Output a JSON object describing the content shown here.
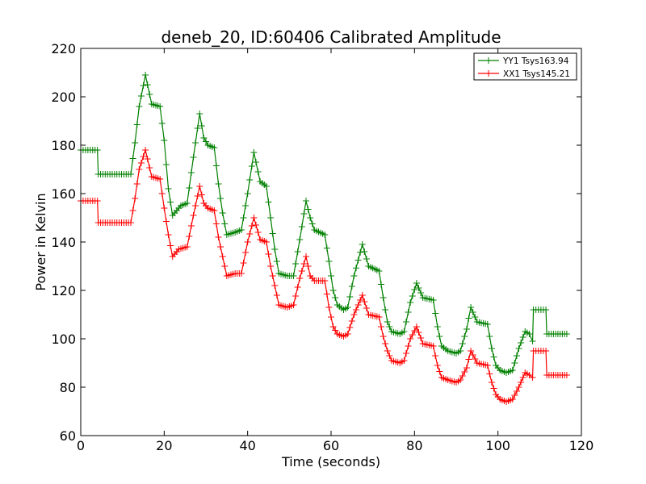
{
  "chart_data": {
    "type": "line",
    "title": "deneb_20, ID:60406 Calibrated Amplitude",
    "xlabel": "Time (seconds)",
    "ylabel": "Power in Kelvin",
    "xlim": [
      0,
      120
    ],
    "ylim": [
      60,
      220
    ],
    "xticks": [
      0,
      20,
      40,
      60,
      80,
      100,
      120
    ],
    "yticks": [
      60,
      80,
      100,
      120,
      140,
      160,
      180,
      200,
      220
    ],
    "grid": false,
    "legend_position": "top-right",
    "marker": "plus",
    "series": [
      {
        "name": "YY1 Tsys163.94",
        "color": "#008000",
        "points": [
          [
            0,
            178
          ],
          [
            4,
            178
          ],
          [
            4.2,
            168
          ],
          [
            12,
            168
          ],
          [
            13,
            181
          ],
          [
            14,
            196
          ],
          [
            15.5,
            209
          ],
          [
            17,
            197
          ],
          [
            19,
            196
          ],
          [
            20,
            182
          ],
          [
            21,
            162
          ],
          [
            22,
            151
          ],
          [
            23,
            153
          ],
          [
            24,
            155
          ],
          [
            25.5,
            156
          ],
          [
            27,
            175
          ],
          [
            28.5,
            193
          ],
          [
            29.5,
            183
          ],
          [
            30.5,
            180
          ],
          [
            32,
            179
          ],
          [
            33,
            164
          ],
          [
            34,
            152
          ],
          [
            35,
            143
          ],
          [
            37,
            144
          ],
          [
            38.5,
            145
          ],
          [
            40,
            160
          ],
          [
            41.5,
            177
          ],
          [
            43,
            165
          ],
          [
            44.5,
            163
          ],
          [
            45.5,
            150
          ],
          [
            46.5,
            137
          ],
          [
            47.5,
            127
          ],
          [
            49.5,
            126
          ],
          [
            51,
            126
          ],
          [
            52.5,
            141
          ],
          [
            54,
            157
          ],
          [
            55,
            150
          ],
          [
            56,
            145
          ],
          [
            58.5,
            143
          ],
          [
            59.5,
            132
          ],
          [
            60.5,
            120
          ],
          [
            61.5,
            114
          ],
          [
            63,
            112
          ],
          [
            64,
            113
          ],
          [
            65.5,
            126
          ],
          [
            67.5,
            139
          ],
          [
            69,
            130
          ],
          [
            71.5,
            128
          ],
          [
            72.5,
            117
          ],
          [
            73.5,
            107
          ],
          [
            74.5,
            103
          ],
          [
            76.5,
            102
          ],
          [
            77.5,
            103
          ],
          [
            79,
            115
          ],
          [
            80.5,
            123
          ],
          [
            82,
            117
          ],
          [
            84.5,
            116
          ],
          [
            85.5,
            105
          ],
          [
            86.5,
            97
          ],
          [
            88,
            95
          ],
          [
            90,
            94
          ],
          [
            91,
            95
          ],
          [
            92.5,
            104
          ],
          [
            93.5,
            113
          ],
          [
            95,
            107
          ],
          [
            97.5,
            106
          ],
          [
            98.5,
            96
          ],
          [
            99.5,
            89
          ],
          [
            100.5,
            87
          ],
          [
            102,
            86
          ],
          [
            103.5,
            87
          ],
          [
            105,
            96
          ],
          [
            106.5,
            103
          ],
          [
            107.5,
            102
          ],
          [
            108.3,
            99
          ],
          [
            108.5,
            112
          ],
          [
            111.5,
            112
          ],
          [
            111.7,
            102
          ],
          [
            116.5,
            102
          ]
        ]
      },
      {
        "name": "XX1 Tsys145.21",
        "color": "#ff0000",
        "points": [
          [
            0,
            157
          ],
          [
            4,
            157
          ],
          [
            4.2,
            148
          ],
          [
            12,
            148
          ],
          [
            13,
            158
          ],
          [
            14,
            170
          ],
          [
            15.5,
            178
          ],
          [
            17,
            167
          ],
          [
            19,
            166
          ],
          [
            20,
            154
          ],
          [
            21,
            143
          ],
          [
            22,
            134
          ],
          [
            23.5,
            137
          ],
          [
            25.5,
            138
          ],
          [
            27,
            151
          ],
          [
            28.5,
            163
          ],
          [
            29.5,
            156
          ],
          [
            30.5,
            154
          ],
          [
            32,
            153
          ],
          [
            33,
            142
          ],
          [
            34,
            134
          ],
          [
            35,
            126
          ],
          [
            37,
            127
          ],
          [
            38.5,
            127
          ],
          [
            40,
            140
          ],
          [
            41.5,
            150
          ],
          [
            43,
            141
          ],
          [
            44.5,
            140
          ],
          [
            45.5,
            130
          ],
          [
            46.5,
            122
          ],
          [
            47.5,
            114
          ],
          [
            49.5,
            113
          ],
          [
            51,
            114
          ],
          [
            52.5,
            125
          ],
          [
            54,
            134
          ],
          [
            55,
            126
          ],
          [
            56,
            124
          ],
          [
            58.5,
            124
          ],
          [
            59.5,
            113
          ],
          [
            60.5,
            105
          ],
          [
            61.5,
            102
          ],
          [
            63,
            101
          ],
          [
            64,
            102
          ],
          [
            65.5,
            110
          ],
          [
            67.5,
            118
          ],
          [
            69,
            110
          ],
          [
            71.5,
            109
          ],
          [
            72.5,
            101
          ],
          [
            73.5,
            95
          ],
          [
            74.5,
            91
          ],
          [
            76.5,
            90
          ],
          [
            77.5,
            91
          ],
          [
            79,
            100
          ],
          [
            80.5,
            105
          ],
          [
            82,
            98
          ],
          [
            84.5,
            97
          ],
          [
            85.5,
            89
          ],
          [
            86.5,
            84
          ],
          [
            88,
            83
          ],
          [
            90,
            82
          ],
          [
            91,
            83
          ],
          [
            92.5,
            88
          ],
          [
            93.5,
            95
          ],
          [
            95,
            90
          ],
          [
            97.5,
            89
          ],
          [
            98.5,
            82
          ],
          [
            99.5,
            77
          ],
          [
            100.5,
            75
          ],
          [
            102,
            74
          ],
          [
            103.5,
            75
          ],
          [
            105,
            80
          ],
          [
            106.5,
            86
          ],
          [
            107.5,
            85
          ],
          [
            108.3,
            84
          ],
          [
            108.5,
            95
          ],
          [
            111.5,
            95
          ],
          [
            111.7,
            85
          ],
          [
            116.5,
            85
          ]
        ]
      }
    ]
  }
}
